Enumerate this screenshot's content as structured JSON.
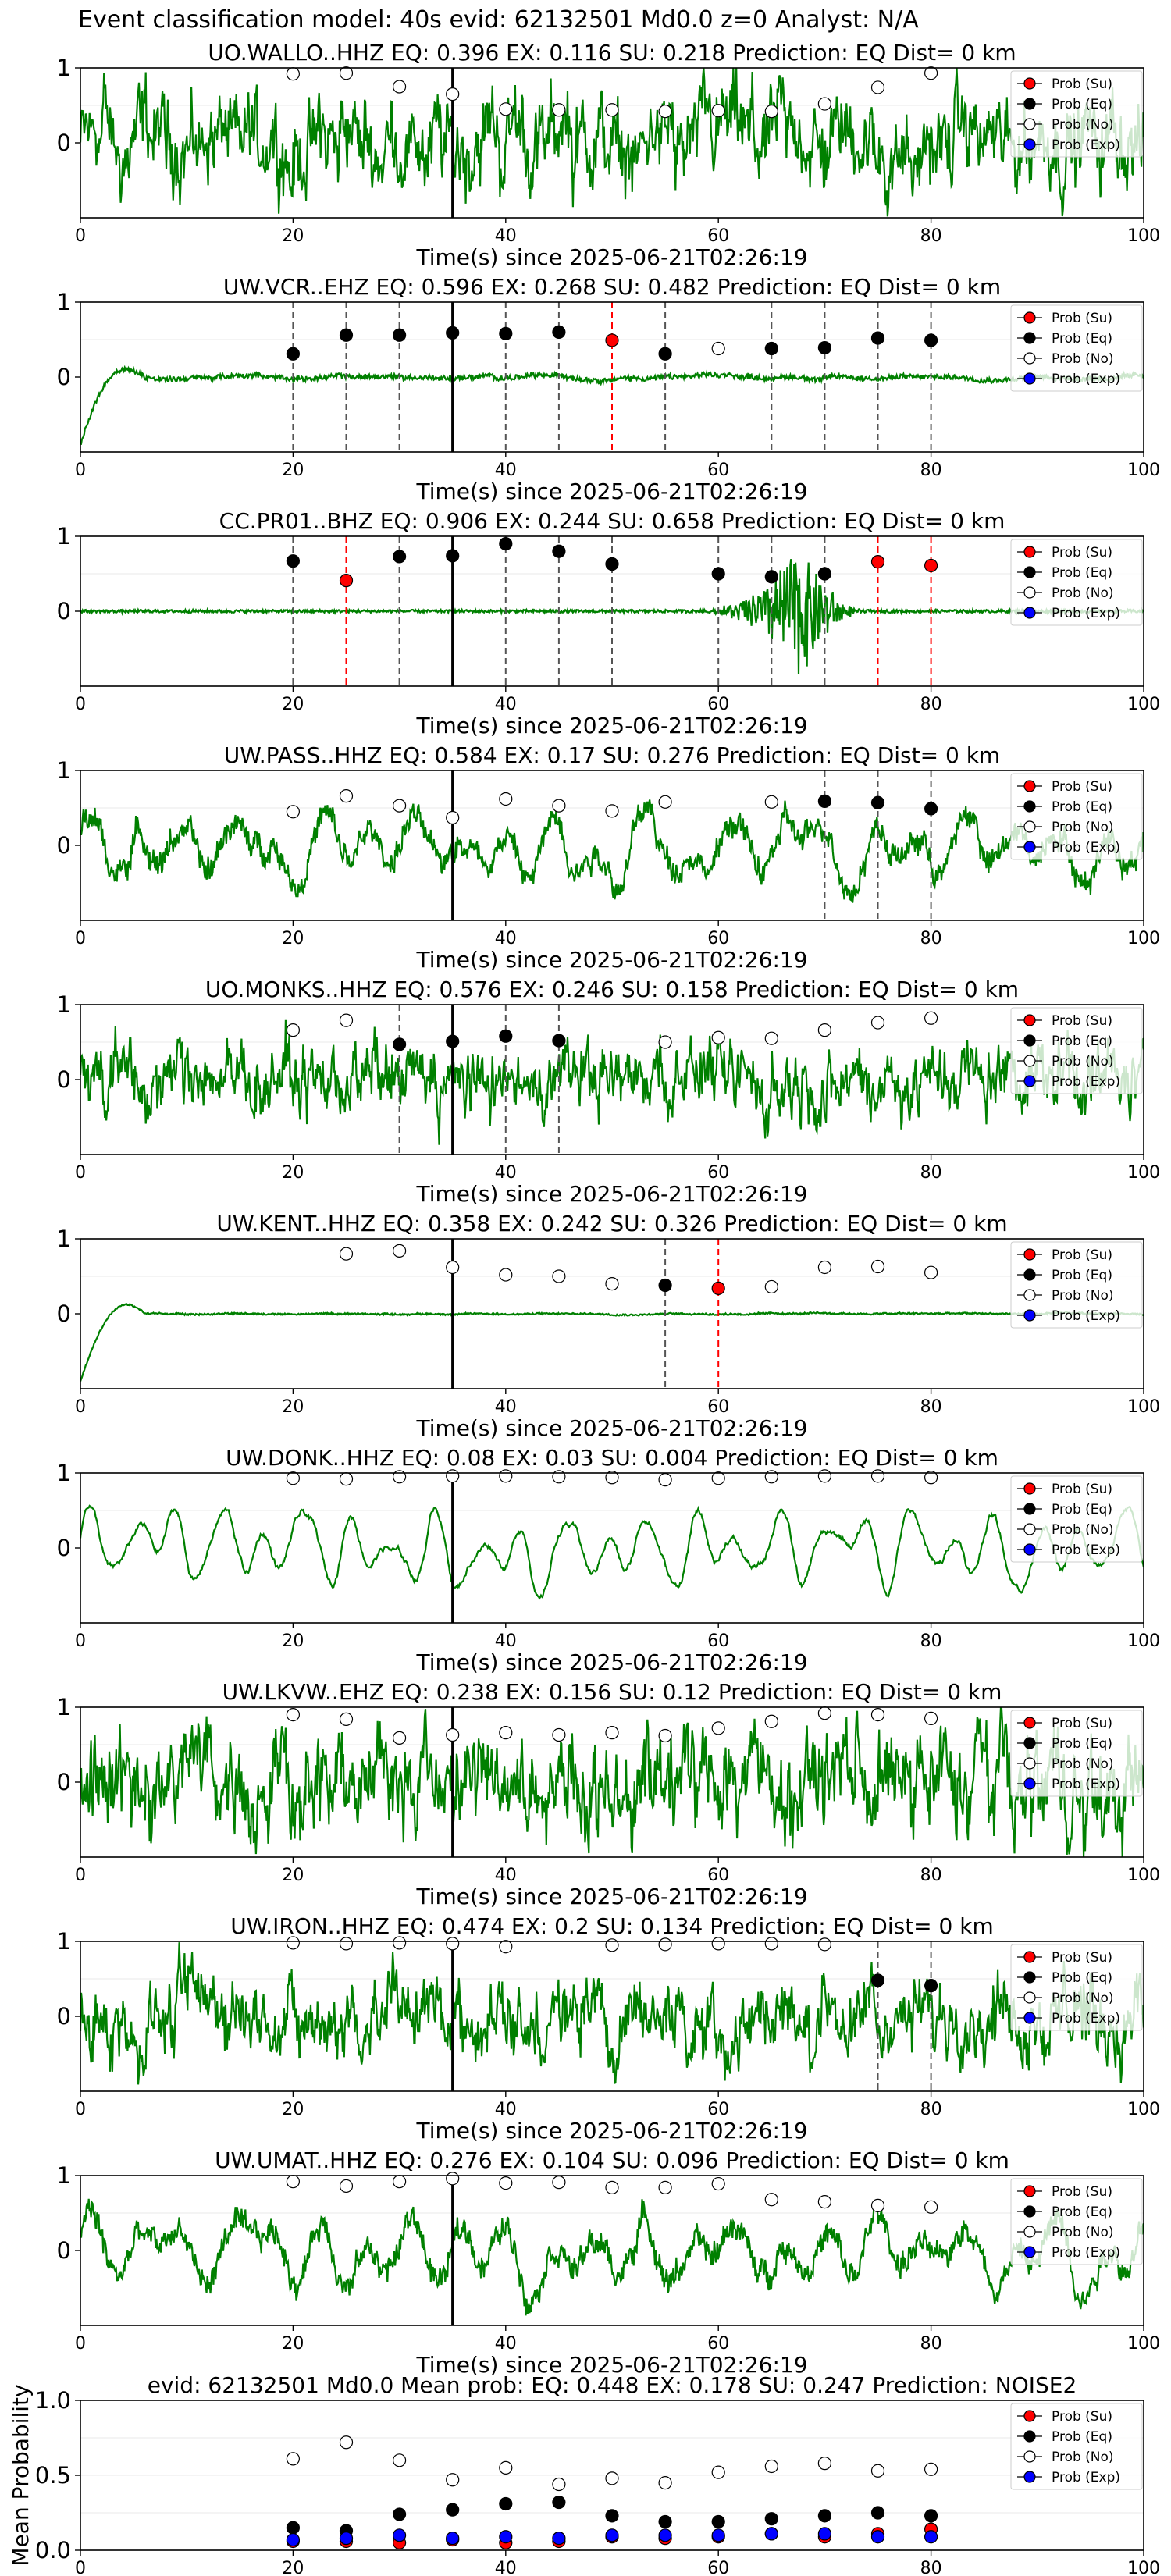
{
  "figure": {
    "suptitle": "Event classification model: 40s evid: 62132501 Md0.0 z=0 Analyst: N/A"
  },
  "legend_labels": [
    "Prob (Su)",
    "Prob (Eq)",
    "Prob (No)",
    "Prob (Exp)"
  ],
  "colors": {
    "waveform": "#008000",
    "su": "#ff0000",
    "eq": "#000000",
    "no": "#ffffff",
    "exp": "#0000ff",
    "dashed_eq": "#555555",
    "dashed_su": "#ff0000",
    "event_line": "#000000"
  },
  "chart_data": [
    {
      "type": "line",
      "title": "UO.WALLO..HHZ   EQ: 0.396  EX: 0.116  SU: 0.218   Prediction: EQ    Dist= 0 km",
      "xlabel": "Time(s) since 2025-06-21T02:26:19",
      "xlim": [
        0,
        100
      ],
      "ylim": [
        -1,
        1
      ],
      "xticks": [
        0,
        20,
        40,
        60,
        80,
        100
      ],
      "yticks": [
        0,
        1
      ],
      "event_line": 35,
      "waveform_style": "broadband",
      "waveform_amplitude": 0.72,
      "points": [
        {
          "x": 20,
          "y": 0.92,
          "cls": "no"
        },
        {
          "x": 25,
          "y": 0.93,
          "cls": "no"
        },
        {
          "x": 30,
          "y": 0.75,
          "cls": "no"
        },
        {
          "x": 35,
          "y": 0.65,
          "cls": "no"
        },
        {
          "x": 40,
          "y": 0.45,
          "cls": "no"
        },
        {
          "x": 45,
          "y": 0.44,
          "cls": "no"
        },
        {
          "x": 50,
          "y": 0.44,
          "cls": "no"
        },
        {
          "x": 55,
          "y": 0.42,
          "cls": "no"
        },
        {
          "x": 60,
          "y": 0.43,
          "cls": "no"
        },
        {
          "x": 65,
          "y": 0.42,
          "cls": "no"
        },
        {
          "x": 70,
          "y": 0.52,
          "cls": "no"
        },
        {
          "x": 75,
          "y": 0.74,
          "cls": "no"
        },
        {
          "x": 80,
          "y": 0.93,
          "cls": "no"
        }
      ]
    },
    {
      "type": "line",
      "title": "UW.VCR..EHZ   EQ: 0.596  EX: 0.268  SU: 0.482   Prediction: EQ    Dist= 0 km",
      "xlabel": "Time(s) since 2025-06-21T02:26:19",
      "xlim": [
        0,
        100
      ],
      "ylim": [
        -1,
        1
      ],
      "xticks": [
        0,
        20,
        40,
        60,
        80,
        100
      ],
      "yticks": [
        0,
        1
      ],
      "event_line": 35,
      "waveform_style": "quiet",
      "waveform_amplitude": 0.12,
      "initial_spike": true,
      "points": [
        {
          "x": 20,
          "y": 0.31,
          "cls": "eq"
        },
        {
          "x": 25,
          "y": 0.56,
          "cls": "eq"
        },
        {
          "x": 30,
          "y": 0.56,
          "cls": "eq"
        },
        {
          "x": 35,
          "y": 0.59,
          "cls": "eq"
        },
        {
          "x": 40,
          "y": 0.58,
          "cls": "eq"
        },
        {
          "x": 45,
          "y": 0.6,
          "cls": "eq"
        },
        {
          "x": 50,
          "y": 0.49,
          "cls": "su"
        },
        {
          "x": 55,
          "y": 0.31,
          "cls": "eq"
        },
        {
          "x": 60,
          "y": 0.38,
          "cls": "no"
        },
        {
          "x": 65,
          "y": 0.38,
          "cls": "eq"
        },
        {
          "x": 70,
          "y": 0.39,
          "cls": "eq"
        },
        {
          "x": 75,
          "y": 0.52,
          "cls": "eq"
        },
        {
          "x": 80,
          "y": 0.49,
          "cls": "eq"
        }
      ]
    },
    {
      "type": "line",
      "title": "CC.PR01..BHZ   EQ: 0.906  EX: 0.244  SU: 0.658   Prediction: EQ    Dist= 0 km",
      "xlabel": "Time(s) since 2025-06-21T02:26:19",
      "xlim": [
        0,
        100
      ],
      "ylim": [
        -1,
        1
      ],
      "xticks": [
        0,
        20,
        40,
        60,
        80,
        100
      ],
      "yticks": [
        0,
        1
      ],
      "event_line": 35,
      "waveform_style": "burst",
      "waveform_amplitude": 0.02,
      "burst": {
        "start": 58,
        "peak": 68,
        "end": 74,
        "amp": 0.95
      },
      "points": [
        {
          "x": 20,
          "y": 0.67,
          "cls": "eq"
        },
        {
          "x": 25,
          "y": 0.41,
          "cls": "su"
        },
        {
          "x": 30,
          "y": 0.73,
          "cls": "eq"
        },
        {
          "x": 35,
          "y": 0.74,
          "cls": "eq"
        },
        {
          "x": 40,
          "y": 0.9,
          "cls": "eq"
        },
        {
          "x": 45,
          "y": 0.8,
          "cls": "eq"
        },
        {
          "x": 50,
          "y": 0.63,
          "cls": "eq"
        },
        {
          "x": 60,
          "y": 0.5,
          "cls": "eq"
        },
        {
          "x": 65,
          "y": 0.46,
          "cls": "eq"
        },
        {
          "x": 70,
          "y": 0.5,
          "cls": "eq"
        },
        {
          "x": 75,
          "y": 0.66,
          "cls": "su"
        },
        {
          "x": 80,
          "y": 0.61,
          "cls": "su"
        }
      ]
    },
    {
      "type": "line",
      "title": "UW.PASS..HHZ   EQ: 0.584  EX: 0.17  SU: 0.276   Prediction: EQ    Dist= 0 km",
      "xlabel": "Time(s) since 2025-06-21T02:26:19",
      "xlim": [
        0,
        100
      ],
      "ylim": [
        -1,
        1
      ],
      "xticks": [
        0,
        20,
        40,
        60,
        80,
        100
      ],
      "yticks": [
        0,
        1
      ],
      "event_line": 35,
      "waveform_style": "oscillating",
      "waveform_amplitude": 0.55,
      "points": [
        {
          "x": 20,
          "y": 0.45,
          "cls": "no"
        },
        {
          "x": 25,
          "y": 0.66,
          "cls": "no"
        },
        {
          "x": 30,
          "y": 0.53,
          "cls": "no"
        },
        {
          "x": 35,
          "y": 0.37,
          "cls": "no"
        },
        {
          "x": 40,
          "y": 0.62,
          "cls": "no"
        },
        {
          "x": 45,
          "y": 0.53,
          "cls": "no"
        },
        {
          "x": 50,
          "y": 0.46,
          "cls": "no"
        },
        {
          "x": 55,
          "y": 0.58,
          "cls": "no"
        },
        {
          "x": 65,
          "y": 0.58,
          "cls": "no"
        },
        {
          "x": 70,
          "y": 0.59,
          "cls": "eq"
        },
        {
          "x": 75,
          "y": 0.57,
          "cls": "eq"
        },
        {
          "x": 80,
          "y": 0.49,
          "cls": "eq"
        }
      ]
    },
    {
      "type": "line",
      "title": "UO.MONKS..HHZ   EQ: 0.576  EX: 0.246  SU: 0.158   Prediction: EQ    Dist= 0 km",
      "xlabel": "Time(s) since 2025-06-21T02:26:19",
      "xlim": [
        0,
        100
      ],
      "ylim": [
        -1,
        1
      ],
      "xticks": [
        0,
        20,
        40,
        60,
        80,
        100
      ],
      "yticks": [
        0,
        1
      ],
      "event_line": 35,
      "waveform_style": "broadband",
      "waveform_amplitude": 0.55,
      "points": [
        {
          "x": 20,
          "y": 0.66,
          "cls": "no"
        },
        {
          "x": 25,
          "y": 0.79,
          "cls": "no"
        },
        {
          "x": 30,
          "y": 0.47,
          "cls": "eq"
        },
        {
          "x": 35,
          "y": 0.51,
          "cls": "eq"
        },
        {
          "x": 40,
          "y": 0.58,
          "cls": "eq"
        },
        {
          "x": 45,
          "y": 0.52,
          "cls": "eq"
        },
        {
          "x": 55,
          "y": 0.5,
          "cls": "no"
        },
        {
          "x": 60,
          "y": 0.56,
          "cls": "no"
        },
        {
          "x": 65,
          "y": 0.55,
          "cls": "no"
        },
        {
          "x": 70,
          "y": 0.66,
          "cls": "no"
        },
        {
          "x": 75,
          "y": 0.76,
          "cls": "no"
        },
        {
          "x": 80,
          "y": 0.82,
          "cls": "no"
        }
      ]
    },
    {
      "type": "line",
      "title": "UW.KENT..HHZ   EQ: 0.358  EX: 0.242  SU: 0.326   Prediction: EQ    Dist= 0 km",
      "xlabel": "Time(s) since 2025-06-21T02:26:19",
      "xlim": [
        0,
        100
      ],
      "ylim": [
        -1,
        1
      ],
      "xticks": [
        0,
        20,
        40,
        60,
        80,
        100
      ],
      "yticks": [
        0,
        1
      ],
      "event_line": 35,
      "waveform_style": "quiet",
      "waveform_amplitude": 0.04,
      "initial_spike": true,
      "points": [
        {
          "x": 25,
          "y": 0.8,
          "cls": "no"
        },
        {
          "x": 30,
          "y": 0.84,
          "cls": "no"
        },
        {
          "x": 35,
          "y": 0.62,
          "cls": "no"
        },
        {
          "x": 40,
          "y": 0.52,
          "cls": "no"
        },
        {
          "x": 45,
          "y": 0.5,
          "cls": "no"
        },
        {
          "x": 50,
          "y": 0.4,
          "cls": "no"
        },
        {
          "x": 55,
          "y": 0.38,
          "cls": "eq"
        },
        {
          "x": 60,
          "y": 0.34,
          "cls": "su"
        },
        {
          "x": 65,
          "y": 0.36,
          "cls": "no"
        },
        {
          "x": 70,
          "y": 0.62,
          "cls": "no"
        },
        {
          "x": 75,
          "y": 0.63,
          "cls": "no"
        },
        {
          "x": 80,
          "y": 0.55,
          "cls": "no"
        }
      ]
    },
    {
      "type": "line",
      "title": "UW.DONK..HHZ   EQ: 0.08  EX: 0.03  SU: 0.004   Prediction: EQ    Dist= 0 km",
      "xlabel": "Time(s) since 2025-06-21T02:26:19",
      "xlim": [
        0,
        100
      ],
      "ylim": [
        -1,
        1
      ],
      "xticks": [
        0,
        20,
        40,
        60,
        80,
        100
      ],
      "yticks": [
        0,
        1
      ],
      "event_line": 35,
      "waveform_style": "smooth",
      "waveform_amplitude": 0.55,
      "points": [
        {
          "x": 20,
          "y": 0.93,
          "cls": "no"
        },
        {
          "x": 25,
          "y": 0.92,
          "cls": "no"
        },
        {
          "x": 30,
          "y": 0.95,
          "cls": "no"
        },
        {
          "x": 35,
          "y": 0.96,
          "cls": "no"
        },
        {
          "x": 40,
          "y": 0.96,
          "cls": "no"
        },
        {
          "x": 45,
          "y": 0.95,
          "cls": "no"
        },
        {
          "x": 50,
          "y": 0.94,
          "cls": "no"
        },
        {
          "x": 55,
          "y": 0.91,
          "cls": "no"
        },
        {
          "x": 60,
          "y": 0.93,
          "cls": "no"
        },
        {
          "x": 65,
          "y": 0.95,
          "cls": "no"
        },
        {
          "x": 70,
          "y": 0.96,
          "cls": "no"
        },
        {
          "x": 75,
          "y": 0.96,
          "cls": "no"
        },
        {
          "x": 80,
          "y": 0.94,
          "cls": "no"
        }
      ]
    },
    {
      "type": "line",
      "title": "UW.LKVW..EHZ   EQ: 0.238  EX: 0.156  SU: 0.12   Prediction: EQ    Dist= 0 km",
      "xlabel": "Time(s) since 2025-06-21T02:26:19",
      "xlim": [
        0,
        100
      ],
      "ylim": [
        -1,
        1
      ],
      "xticks": [
        0,
        20,
        40,
        60,
        80,
        100
      ],
      "yticks": [
        0,
        1
      ],
      "event_line": 35,
      "waveform_style": "broadband",
      "waveform_amplitude": 0.8,
      "points": [
        {
          "x": 20,
          "y": 0.9,
          "cls": "no"
        },
        {
          "x": 25,
          "y": 0.84,
          "cls": "no"
        },
        {
          "x": 30,
          "y": 0.59,
          "cls": "no"
        },
        {
          "x": 35,
          "y": 0.63,
          "cls": "no"
        },
        {
          "x": 40,
          "y": 0.66,
          "cls": "no"
        },
        {
          "x": 45,
          "y": 0.63,
          "cls": "no"
        },
        {
          "x": 50,
          "y": 0.66,
          "cls": "no"
        },
        {
          "x": 55,
          "y": 0.62,
          "cls": "no"
        },
        {
          "x": 60,
          "y": 0.72,
          "cls": "no"
        },
        {
          "x": 65,
          "y": 0.81,
          "cls": "no"
        },
        {
          "x": 70,
          "y": 0.92,
          "cls": "no"
        },
        {
          "x": 75,
          "y": 0.9,
          "cls": "no"
        },
        {
          "x": 80,
          "y": 0.85,
          "cls": "no"
        }
      ]
    },
    {
      "type": "line",
      "title": "UW.IRON..HHZ   EQ: 0.474  EX: 0.2  SU: 0.134   Prediction: EQ    Dist= 0 km",
      "xlabel": "Time(s) since 2025-06-21T02:26:19",
      "xlim": [
        0,
        100
      ],
      "ylim": [
        -1,
        1
      ],
      "xticks": [
        0,
        20,
        40,
        60,
        80,
        100
      ],
      "yticks": [
        0,
        1
      ],
      "event_line": 35,
      "waveform_style": "broadband",
      "waveform_amplitude": 0.6,
      "points": [
        {
          "x": 20,
          "y": 0.98,
          "cls": "no"
        },
        {
          "x": 25,
          "y": 0.97,
          "cls": "no"
        },
        {
          "x": 30,
          "y": 0.98,
          "cls": "no"
        },
        {
          "x": 35,
          "y": 0.97,
          "cls": "no"
        },
        {
          "x": 40,
          "y": 0.93,
          "cls": "no"
        },
        {
          "x": 50,
          "y": 0.95,
          "cls": "no"
        },
        {
          "x": 55,
          "y": 0.96,
          "cls": "no"
        },
        {
          "x": 60,
          "y": 0.97,
          "cls": "no"
        },
        {
          "x": 65,
          "y": 0.97,
          "cls": "no"
        },
        {
          "x": 70,
          "y": 0.96,
          "cls": "no"
        },
        {
          "x": 75,
          "y": 0.48,
          "cls": "eq"
        },
        {
          "x": 80,
          "y": 0.41,
          "cls": "eq"
        }
      ]
    },
    {
      "type": "line",
      "title": "UW.UMAT..HHZ   EQ: 0.276  EX: 0.104  SU: 0.096   Prediction: EQ    Dist= 0 km",
      "xlabel": "Time(s) since 2025-06-21T02:26:19",
      "xlim": [
        0,
        100
      ],
      "ylim": [
        -1,
        1
      ],
      "xticks": [
        0,
        20,
        40,
        60,
        80,
        100
      ],
      "yticks": [
        0,
        1
      ],
      "event_line": 35,
      "waveform_style": "oscillating",
      "waveform_amplitude": 0.55,
      "points": [
        {
          "x": 20,
          "y": 0.92,
          "cls": "no"
        },
        {
          "x": 25,
          "y": 0.86,
          "cls": "no"
        },
        {
          "x": 30,
          "y": 0.92,
          "cls": "no"
        },
        {
          "x": 35,
          "y": 0.96,
          "cls": "no"
        },
        {
          "x": 40,
          "y": 0.9,
          "cls": "no"
        },
        {
          "x": 45,
          "y": 0.91,
          "cls": "no"
        },
        {
          "x": 50,
          "y": 0.84,
          "cls": "no"
        },
        {
          "x": 55,
          "y": 0.84,
          "cls": "no"
        },
        {
          "x": 60,
          "y": 0.89,
          "cls": "no"
        },
        {
          "x": 65,
          "y": 0.68,
          "cls": "no"
        },
        {
          "x": 70,
          "y": 0.65,
          "cls": "no"
        },
        {
          "x": 75,
          "y": 0.6,
          "cls": "no"
        },
        {
          "x": 80,
          "y": 0.58,
          "cls": "no"
        }
      ]
    },
    {
      "type": "scatter",
      "title": "evid: 62132501  Md0.0   Mean prob:   EQ: 0.448  EX: 0.178  SU: 0.247   Prediction: NOISE2",
      "ylabel": "Mean Probability",
      "xlim": [
        0,
        100
      ],
      "ylim": [
        0,
        1
      ],
      "xticks": [
        0,
        20,
        40,
        60,
        80,
        100
      ],
      "yticks": [
        0.0,
        0.5,
        1.0
      ],
      "x": [
        20,
        25,
        30,
        35,
        40,
        45,
        50,
        55,
        60,
        65,
        70,
        75,
        80
      ],
      "series": [
        {
          "cls": "no",
          "values": [
            0.61,
            0.72,
            0.6,
            0.47,
            0.55,
            0.44,
            0.48,
            0.45,
            0.52,
            0.56,
            0.58,
            0.53,
            0.54
          ]
        },
        {
          "cls": "eq",
          "values": [
            0.15,
            0.13,
            0.24,
            0.27,
            0.31,
            0.32,
            0.23,
            0.19,
            0.19,
            0.21,
            0.23,
            0.25,
            0.23
          ]
        },
        {
          "cls": "su",
          "values": [
            0.06,
            0.06,
            0.05,
            0.07,
            0.05,
            0.06,
            0.09,
            0.08,
            0.09,
            0.11,
            0.09,
            0.11,
            0.14
          ]
        },
        {
          "cls": "exp",
          "values": [
            0.07,
            0.08,
            0.1,
            0.08,
            0.09,
            0.08,
            0.1,
            0.1,
            0.1,
            0.11,
            0.11,
            0.09,
            0.09
          ]
        }
      ]
    }
  ]
}
